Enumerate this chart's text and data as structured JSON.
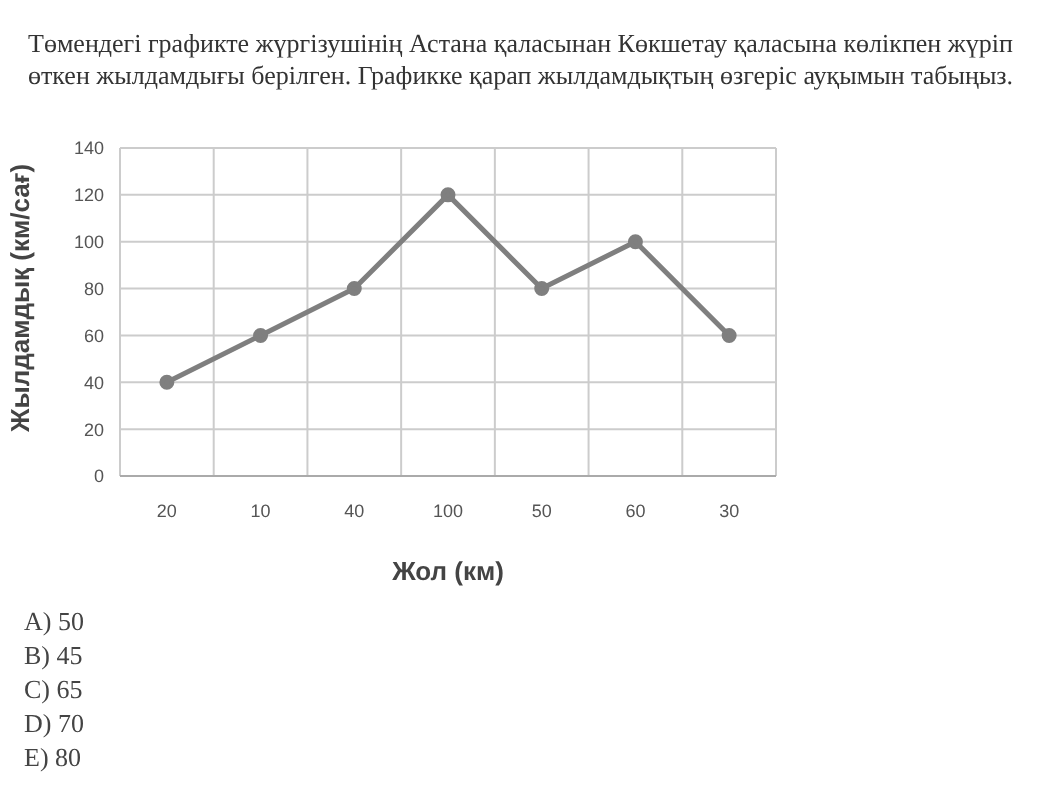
{
  "chart_data": {
    "type": "line",
    "title": "Төмендегі графикте жүргізушінің Астана қаласынан Көкшетау қаласына көлікпен жүріп өткен жылдамдығы берілген. Графикке қарап жылдамдықтың өзгеріс ауқымын табыңыз.",
    "xlabel": "Жол (км)",
    "ylabel": "Жылдамдық (км/сағ)",
    "categories": [
      "20",
      "10",
      "40",
      "100",
      "50",
      "60",
      "30"
    ],
    "series": [
      {
        "color": "#7f7f7f",
        "values": [
          40,
          60,
          80,
          120,
          80,
          100,
          60
        ]
      }
    ],
    "ylim": [
      0,
      140
    ],
    "yticks": [
      0,
      20,
      40,
      60,
      80,
      100,
      120,
      140
    ],
    "grid": true,
    "marker": "circle",
    "line_style": "solid",
    "annotations": [
      "A) 50",
      "B) 45",
      "C) 65",
      "D) 70",
      "E) 80"
    ]
  }
}
